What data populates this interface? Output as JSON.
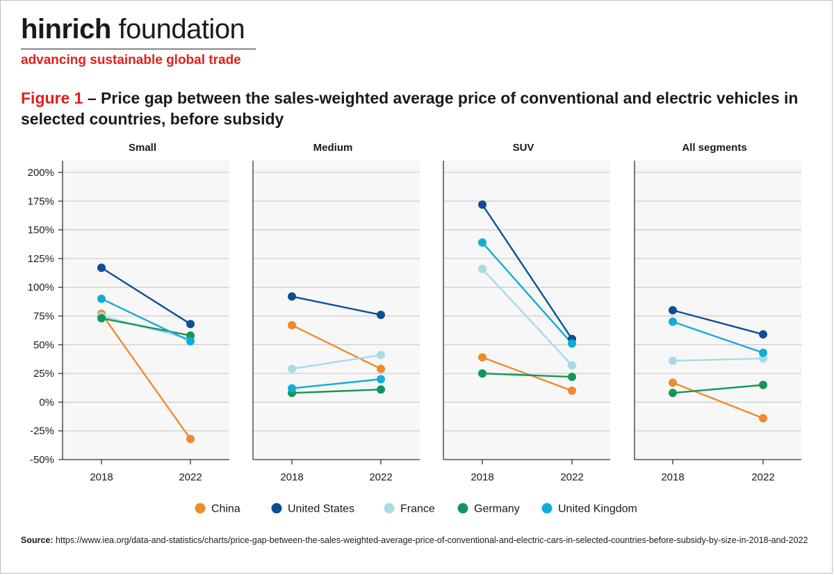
{
  "brand": {
    "name_bold": "hinrich",
    "name_light": "foundation",
    "tagline": "advancing sustainable global trade",
    "colors": {
      "accent": "#e0201b"
    }
  },
  "figure": {
    "number": "Figure 1",
    "title": "– Price gap between the sales-weighted average price of conventional and electric vehicles in selected countries, before subsidy"
  },
  "chart_data": {
    "type": "line",
    "panels": [
      {
        "title": "Small",
        "x": [
          "2018",
          "2022"
        ],
        "series": [
          {
            "name": "China",
            "values": [
              77,
              -32
            ]
          },
          {
            "name": "United States",
            "values": [
              117,
              68
            ]
          },
          {
            "name": "France",
            "values": [
              75,
              55
            ]
          },
          {
            "name": "Germany",
            "values": [
              73,
              58
            ]
          },
          {
            "name": "United Kingdom",
            "values": [
              90,
              53
            ]
          }
        ]
      },
      {
        "title": "Medium",
        "x": [
          "2018",
          "2022"
        ],
        "series": [
          {
            "name": "China",
            "values": [
              67,
              29
            ]
          },
          {
            "name": "United States",
            "values": [
              92,
              76
            ]
          },
          {
            "name": "France",
            "values": [
              29,
              41
            ]
          },
          {
            "name": "Germany",
            "values": [
              8,
              11
            ]
          },
          {
            "name": "United Kingdom",
            "values": [
              12,
              20
            ]
          }
        ]
      },
      {
        "title": "SUV",
        "x": [
          "2018",
          "2022"
        ],
        "series": [
          {
            "name": "China",
            "values": [
              39,
              10
            ]
          },
          {
            "name": "United States",
            "values": [
              172,
              55
            ]
          },
          {
            "name": "France",
            "values": [
              116,
              32
            ]
          },
          {
            "name": "Germany",
            "values": [
              25,
              22
            ]
          },
          {
            "name": "United Kingdom",
            "values": [
              139,
              51
            ]
          }
        ]
      },
      {
        "title": "All segments",
        "x": [
          "2018",
          "2022"
        ],
        "series": [
          {
            "name": "China",
            "values": [
              17,
              -14
            ]
          },
          {
            "name": "United States",
            "values": [
              80,
              59
            ]
          },
          {
            "name": "France",
            "values": [
              36,
              38
            ]
          },
          {
            "name": "Germany",
            "values": [
              8,
              15
            ]
          },
          {
            "name": "United Kingdom",
            "values": [
              70,
              43
            ]
          }
        ]
      }
    ],
    "y_ticks": [
      "200%",
      "175%",
      "150%",
      "125%",
      "100%",
      "75%",
      "50%",
      "25%",
      "0%",
      "-25%",
      "-50%"
    ],
    "ylim": [
      -50,
      200
    ],
    "grid": true,
    "legend_position": "bottom",
    "legend": [
      {
        "name": "China",
        "color": "#f08a2c"
      },
      {
        "name": "United States",
        "color": "#0d4f94"
      },
      {
        "name": "France",
        "color": "#a8dbe6"
      },
      {
        "name": "Germany",
        "color": "#14965a"
      },
      {
        "name": "United Kingdom",
        "color": "#11acd8"
      }
    ]
  },
  "source": {
    "label": "Source:",
    "text": "https://www.iea.org/data-and-statistics/charts/price-gap-between-the-sales-weighted-average-price-of-conventional-and-electric-cars-in-selected-countries-before-subsidy-by-size-in-2018-and-2022"
  }
}
